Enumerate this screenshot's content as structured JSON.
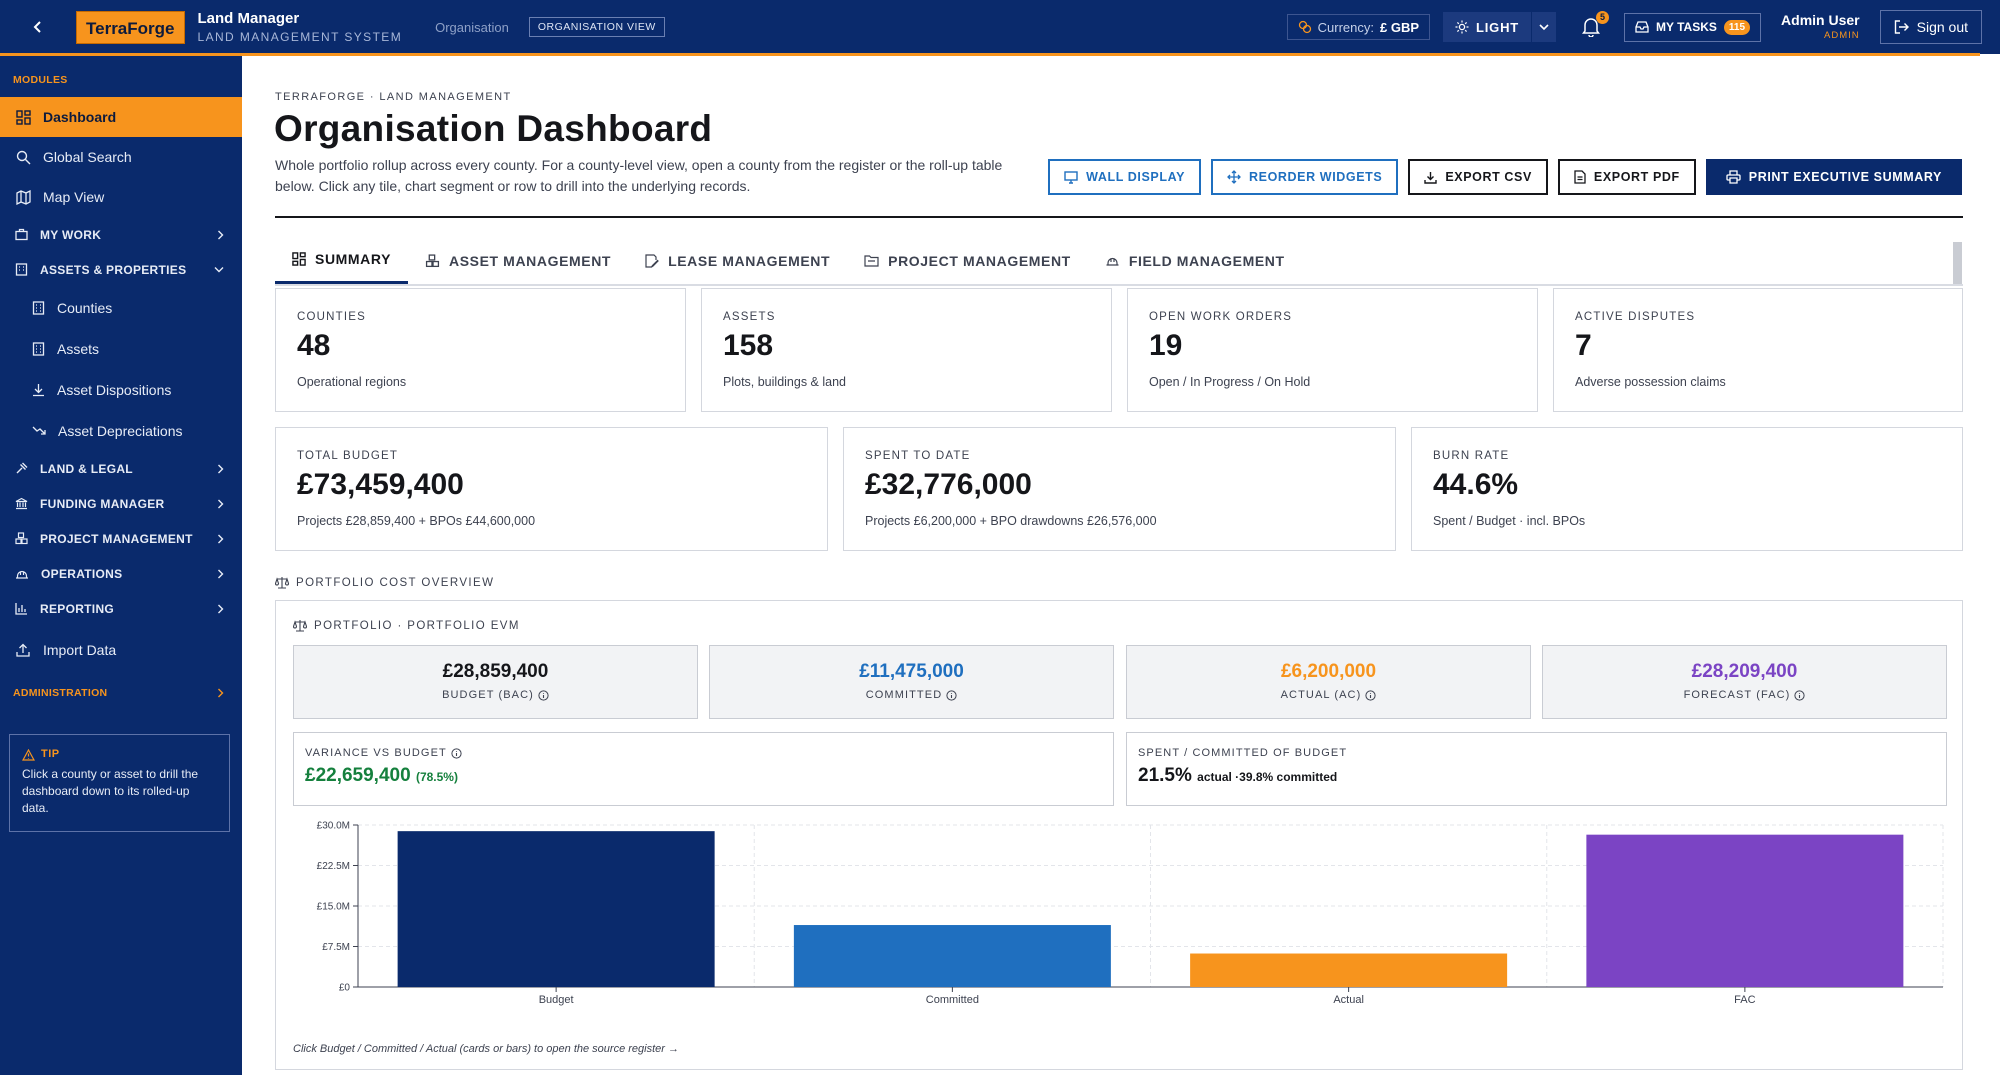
{
  "topbar": {
    "logo": "TerraForge",
    "app_title": "Land Manager",
    "app_subtitle": "LAND MANAGEMENT SYSTEM",
    "breadcrumb": "Organisation",
    "view_badge": "ORGANISATION VIEW",
    "currency_label": "Currency:",
    "currency_value": "£ GBP",
    "theme_label": "LIGHT",
    "notifications_count": "5",
    "tasks_label": "MY TASKS",
    "tasks_count": "115",
    "user_name": "Admin User",
    "user_role": "ADMIN",
    "signout_label": "Sign out",
    "accent_color": "#f7941d",
    "brand_color": "#0a2a6c"
  },
  "sidebar": {
    "modules_label": "MODULES",
    "dashboard": "Dashboard",
    "global_search": "Global Search",
    "map_view": "Map View",
    "my_work": "MY WORK",
    "assets_properties": "ASSETS & PROPERTIES",
    "counties": "Counties",
    "assets": "Assets",
    "asset_dispositions": "Asset Dispositions",
    "asset_depreciations": "Asset Depreciations",
    "land_legal": "LAND & LEGAL",
    "funding_manager": "FUNDING MANAGER",
    "project_management": "PROJECT MANAGEMENT",
    "operations": "OPERATIONS",
    "reporting": "REPORTING",
    "import_data": "Import Data",
    "administration": "ADMINISTRATION",
    "tip_title": "TIP",
    "tip_text": "Click a county or asset to drill the dashboard down to its rolled-up data."
  },
  "header": {
    "kicker": "TERRAFORGE · LAND MANAGEMENT",
    "title": "Organisation Dashboard",
    "description": "Whole portfolio rollup across every county. For a county-level view, open a county from the register or the roll-up table below. Click any tile, chart segment or row to drill into the underlying records.",
    "btn_wall": "WALL DISPLAY",
    "btn_reorder": "REORDER WIDGETS",
    "btn_csv": "EXPORT CSV",
    "btn_pdf": "EXPORT PDF",
    "btn_print": "PRINT EXECUTIVE SUMMARY"
  },
  "tabs": {
    "summary": "SUMMARY",
    "asset": "ASSET MANAGEMENT",
    "lease": "LEASE MANAGEMENT",
    "project": "PROJECT MANAGEMENT",
    "field": "FIELD MANAGEMENT"
  },
  "kpis": {
    "counties": {
      "label": "COUNTIES",
      "value": "48",
      "sub": "Operational regions"
    },
    "assets": {
      "label": "ASSETS",
      "value": "158",
      "sub": "Plots, buildings & land"
    },
    "work_orders": {
      "label": "OPEN WORK ORDERS",
      "value": "19",
      "sub": "Open / In Progress / On Hold"
    },
    "disputes": {
      "label": "ACTIVE DISPUTES",
      "value": "7",
      "sub": "Adverse possession claims"
    },
    "budget": {
      "label": "TOTAL BUDGET",
      "value": "£73,459,400",
      "sub": "Projects £28,859,400 + BPOs £44,600,000"
    },
    "spent": {
      "label": "SPENT TO DATE",
      "value": "£32,776,000",
      "sub": "Projects £6,200,000 + BPO drawdowns £26,576,000"
    },
    "burn": {
      "label": "BURN RATE",
      "value": "44.6%",
      "sub": "Spent / Budget · incl. BPOs"
    }
  },
  "cost": {
    "section_title": "PORTFOLIO COST OVERVIEW",
    "panel_title": "PORTFOLIO · PORTFOLIO EVM",
    "bac": {
      "value": "£28,859,400",
      "label": "BUDGET (BAC)",
      "color": "#15161a"
    },
    "committed": {
      "value": "£11,475,000",
      "label": "COMMITTED",
      "color": "#1f6fbf"
    },
    "actual": {
      "value": "£6,200,000",
      "label": "ACTUAL (AC)",
      "color": "#f7941d"
    },
    "forecast": {
      "value": "£28,209,400",
      "label": "FORECAST (FAC)",
      "color": "#7b44c4"
    },
    "variance_label": "VARIANCE VS BUDGET",
    "variance_value": "£22,659,400",
    "variance_pct": "(78.5%)",
    "spent_label": "SPENT / COMMITTED OF BUDGET",
    "spent_pct": "21.5%",
    "spent_note": "actual ·39.8% committed",
    "footnote": "Click Budget / Committed / Actual (cards or bars) to open the source register →"
  },
  "chart_data": {
    "type": "bar",
    "categories": [
      "Budget",
      "Committed",
      "Actual",
      "FAC"
    ],
    "values": [
      28859400,
      11475000,
      6200000,
      28209400
    ],
    "colors": [
      "#0a2a6c",
      "#1f6fbf",
      "#f7941d",
      "#7b44c4"
    ],
    "ylim": [
      0,
      30000000
    ],
    "yticks": [
      0,
      7500000,
      15000000,
      22500000,
      30000000
    ],
    "ytick_labels": [
      "£0",
      "£7.5M",
      "£15.0M",
      "£22.5M",
      "£30.0M"
    ],
    "grid": true,
    "title": "",
    "xlabel": "",
    "ylabel": ""
  }
}
